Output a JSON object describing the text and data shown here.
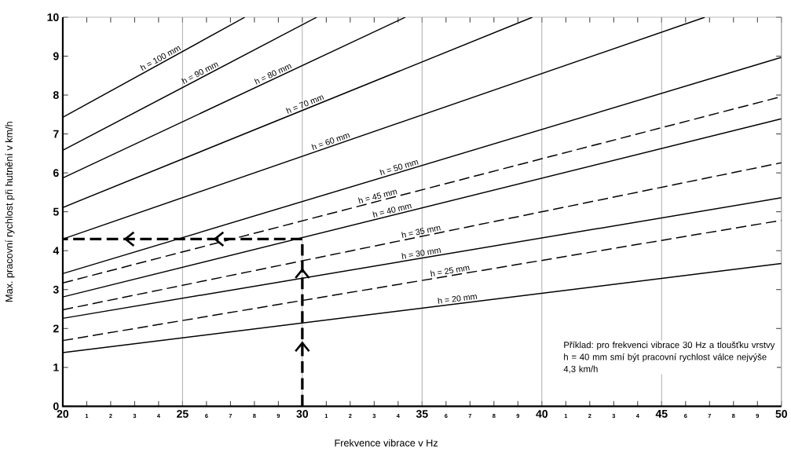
{
  "chart_data": {
    "type": "line",
    "xlabel": "Frekvence vibrace v Hz",
    "ylabel": "Max. pracovní rychlost při hutnění v km/h",
    "xlim": [
      20,
      50
    ],
    "ylim": [
      0,
      10
    ],
    "xticks": [
      20,
      {
        "value": 21,
        "label": null
      },
      {
        "value": 22,
        "label": null
      },
      {
        "value": 23,
        "label": null
      },
      {
        "value": 24,
        "label": null
      },
      25,
      {
        "value": 26,
        "label": null
      },
      {
        "value": 27,
        "label": null
      },
      {
        "value": 28,
        "label": null
      },
      {
        "value": 29,
        "label": null
      },
      30,
      {
        "value": 31,
        "label": null
      },
      {
        "value": 32,
        "label": null
      },
      {
        "value": 33,
        "label": null
      },
      {
        "value": 34,
        "label": null
      },
      35,
      {
        "value": 36,
        "label": null
      },
      {
        "value": 37,
        "label": null
      },
      {
        "value": 38,
        "label": null
      },
      {
        "value": 39,
        "label": null
      },
      40,
      {
        "value": 41,
        "label": null
      },
      {
        "value": 42,
        "label": null
      },
      {
        "value": 43,
        "label": null
      },
      {
        "value": 44,
        "label": null
      },
      45,
      {
        "value": 46,
        "label": null
      },
      {
        "value": 47,
        "label": null
      },
      {
        "value": 48,
        "label": null
      },
      {
        "value": 49,
        "label": null
      },
      50
    ],
    "yticks": [
      0,
      1,
      2,
      3,
      4,
      5,
      6,
      7,
      8,
      9,
      10
    ],
    "grid": "x",
    "annotations": [
      "Příklad: pro frekvenci vibrace 30 Hz a tloušťku vrstvy h = 40 mm smí být pracovní rychlost válce nejvýše 4,3 km/h",
      "1",
      "2",
      "3",
      "4",
      "6",
      "7",
      "8",
      "9",
      "1",
      "2",
      "3",
      "4",
      "6",
      "7",
      "8",
      "9",
      "1",
      "2",
      "3",
      "4",
      "6",
      "7",
      "8",
      "9"
    ],
    "series": [
      {
        "name": "h = 20 mm",
        "color": "#000000",
        "line_style": "solid",
        "x": [
          20,
          50
        ],
        "values": [
          1.38,
          3.67
        ]
      },
      {
        "name": "h = 25 mm",
        "color": "#000000",
        "line_style": "dashed",
        "x": [
          20,
          50
        ],
        "values": [
          1.69,
          4.78
        ]
      },
      {
        "name": "h = 30 mm",
        "color": "#000000",
        "line_style": "solid",
        "x": [
          20,
          50
        ],
        "values": [
          2.26,
          5.36
        ]
      },
      {
        "name": "h = 35 mm",
        "color": "#000000",
        "line_style": "dashed",
        "x": [
          20,
          50
        ],
        "values": [
          2.48,
          6.26
        ]
      },
      {
        "name": "h = 40 mm",
        "color": "#000000",
        "line_style": "solid",
        "x": [
          20,
          50
        ],
        "values": [
          2.81,
          7.39
        ]
      },
      {
        "name": "h = 45 mm",
        "color": "#000000",
        "line_style": "dashed",
        "x": [
          20,
          50
        ],
        "values": [
          3.17,
          7.96
        ]
      },
      {
        "name": "h = 50 mm",
        "color": "#000000",
        "line_style": "solid",
        "x": [
          20,
          50
        ],
        "values": [
          3.41,
          8.97
        ]
      },
      {
        "name": "h = 60 mm",
        "color": "#000000",
        "line_style": "solid",
        "x": [
          20,
          46.8
        ],
        "values": [
          4.3,
          10
        ]
      },
      {
        "name": "h = 70 mm",
        "color": "#000000",
        "line_style": "solid",
        "x": [
          20,
          39.6
        ],
        "values": [
          5.11,
          10
        ]
      },
      {
        "name": "h = 80 mm",
        "color": "#000000",
        "line_style": "solid",
        "x": [
          20,
          34.3
        ],
        "values": [
          5.87,
          10
        ]
      },
      {
        "name": "h = 90 mm",
        "color": "#000000",
        "line_style": "solid",
        "x": [
          20,
          30.6
        ],
        "values": [
          6.58,
          10
        ]
      },
      {
        "name": "h = 100 mm",
        "color": "#000000",
        "line_style": "solid",
        "x": [
          20,
          27.6
        ],
        "values": [
          7.43,
          10
        ]
      },
      {
        "color": "#000000",
        "line_style": "dashed",
        "x": [
          30,
          30,
          20
        ],
        "values": [
          0,
          4.3,
          4.3
        ]
      }
    ]
  }
}
